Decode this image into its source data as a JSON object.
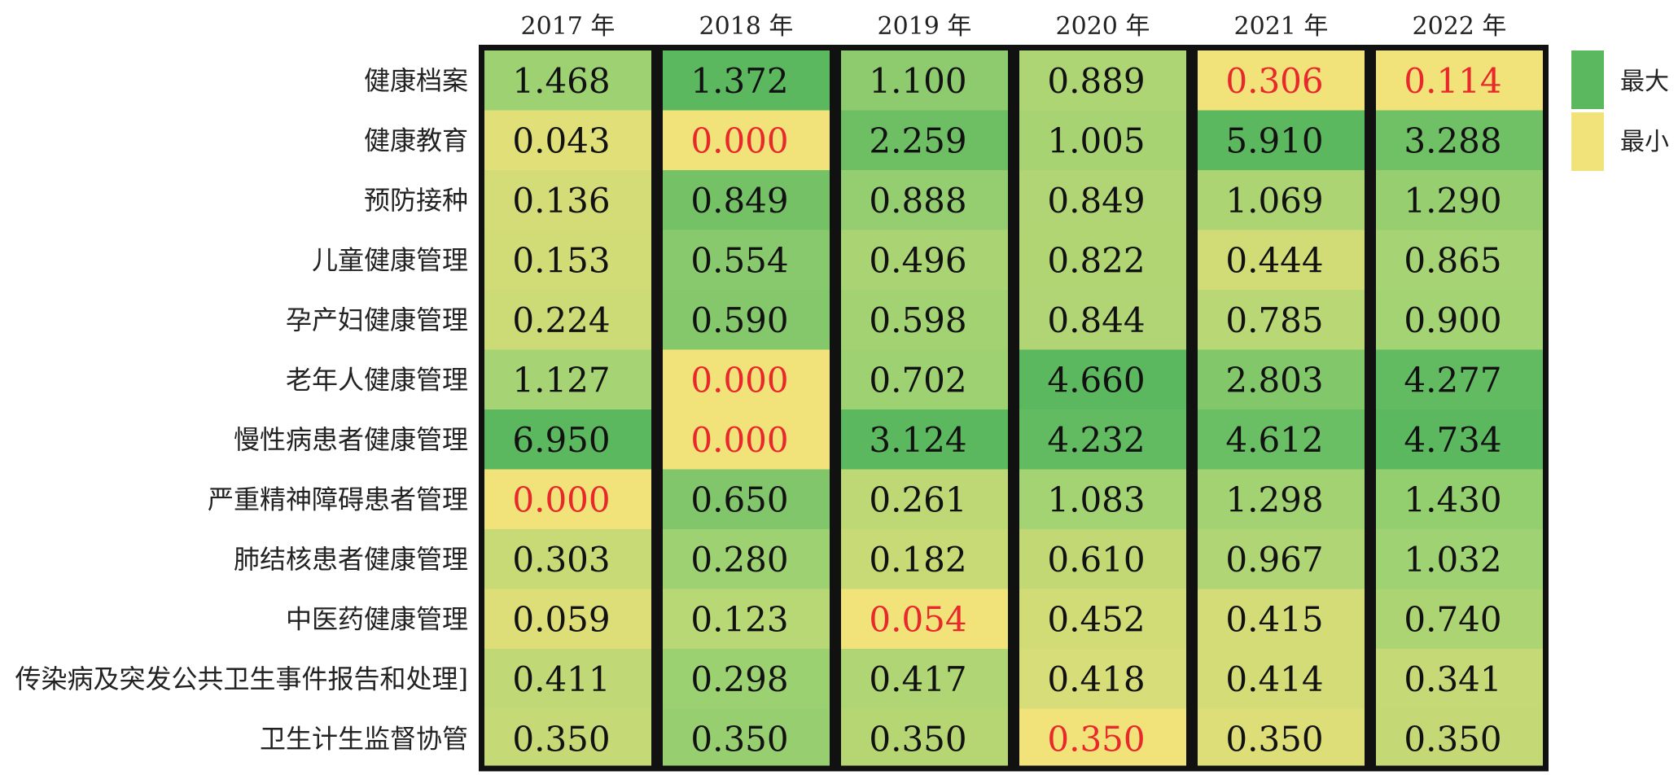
{
  "chart_data": {
    "type": "heatmap",
    "columns": [
      "2017 年",
      "2018 年",
      "2019 年",
      "2020 年",
      "2021 年",
      "2022 年"
    ],
    "rows": [
      "健康档案",
      "健康教育",
      "预防接种",
      "儿童健康管理",
      "孕产妇健康管理",
      "老年人健康管理",
      "慢性病患者健康管理",
      "严重精神障碍患者管理",
      "肺结核患者健康管理",
      "中医药健康管理",
      "传染病及突发公共卫生事件报告和处理]",
      "卫生计生监督协管"
    ],
    "values": [
      [
        "1.468",
        "1.372",
        "1.100",
        "0.889",
        "0.306",
        "0.114"
      ],
      [
        "0.043",
        "0.000",
        "2.259",
        "1.005",
        "5.910",
        "3.288"
      ],
      [
        "0.136",
        "0.849",
        "0.888",
        "0.849",
        "1.069",
        "1.290"
      ],
      [
        "0.153",
        "0.554",
        "0.496",
        "0.822",
        "0.444",
        "0.865"
      ],
      [
        "0.224",
        "0.590",
        "0.598",
        "0.844",
        "0.785",
        "0.900"
      ],
      [
        "1.127",
        "0.000",
        "0.702",
        "4.660",
        "2.803",
        "4.277"
      ],
      [
        "6.950",
        "0.000",
        "3.124",
        "4.232",
        "4.612",
        "4.734"
      ],
      [
        "0.000",
        "0.650",
        "0.261",
        "1.083",
        "1.298",
        "1.430"
      ],
      [
        "0.303",
        "0.280",
        "0.182",
        "0.610",
        "0.967",
        "1.032"
      ],
      [
        "0.059",
        "0.123",
        "0.054",
        "0.452",
        "0.415",
        "0.740"
      ],
      [
        "0.411",
        "0.298",
        "0.417",
        "0.418",
        "0.414",
        "0.341"
      ],
      [
        "0.350",
        "0.350",
        "0.350",
        "0.350",
        "0.350",
        "0.350"
      ]
    ],
    "color_scale": "per-column",
    "legend": {
      "position": "right",
      "max_label": "最大",
      "min_label": "最小",
      "max_color": "#5cb85f",
      "min_color": "#f1e27a"
    },
    "highlight_min_color": "#e8282b",
    "text_color": "#111111",
    "grid_lines": false
  }
}
